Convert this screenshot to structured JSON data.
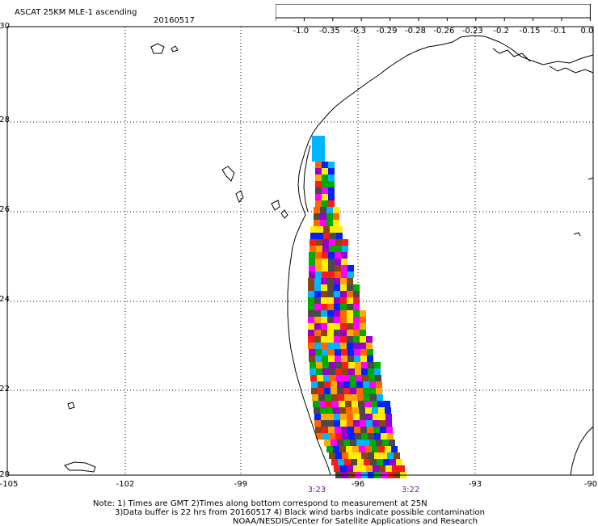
{
  "title": "ASCAT 25KM MLE-1 ascending",
  "date": "20160517",
  "legend": {
    "colors": [
      "#4a4a4a",
      "#00b4ff",
      "#0022ff",
      "#00aa00",
      "#ffee00",
      "#ffaa00",
      "#ff6600",
      "#ff1a1a",
      "#8b4513",
      "#ff00ff",
      "#9900cc"
    ],
    "labels": [
      "-1.0",
      "-0.35",
      "-0.3",
      "-0.29",
      "-0.28",
      "-0.26",
      "-0.23",
      "-0.2",
      "-0.15",
      "-0.1",
      "0.0"
    ]
  },
  "axes": {
    "lat_labels": [
      "30",
      "28",
      "26",
      "24",
      "22",
      "20"
    ],
    "lon_labels": [
      "-105",
      "-102",
      "-99",
      "-96",
      "-93",
      "-90"
    ]
  },
  "pass_times": [
    "3:23",
    "3:22"
  ],
  "notes": [
    "Note: 1) Times are GMT 2)Times along bottom correspond to measurement at 25N",
    "3)Data buffer is 22 hrs from 20160517 4) Black wind barbs indicate possible contamination",
    "NOAA/NESDIS/Center for Satellite Applications and Research"
  ]
}
